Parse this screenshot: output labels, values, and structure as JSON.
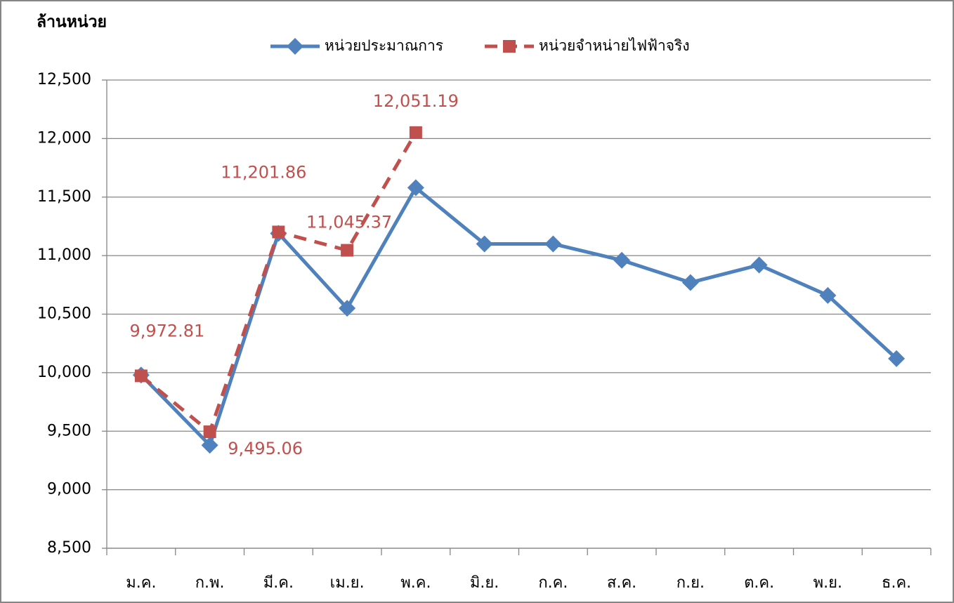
{
  "chart_data": {
    "type": "line",
    "y_axis_label": "ล้านหน่วย",
    "categories": [
      "ม.ค.",
      "ก.พ.",
      "มี.ค.",
      "เม.ย.",
      "พ.ค.",
      "มิ.ย.",
      "ก.ค.",
      "ส.ค.",
      "ก.ย.",
      "ต.ค.",
      "พ.ย.",
      "ธ.ค."
    ],
    "series": [
      {
        "name": "หน่วยประมาณการ",
        "color": "#4f81bd",
        "marker": "diamond",
        "dashed": false,
        "values": [
          9980,
          9380,
          11190,
          10550,
          11580,
          11100,
          11100,
          10960,
          10770,
          10920,
          10660,
          10120
        ]
      },
      {
        "name": "หน่วยจำหน่ายไฟฟ้าจริง",
        "color": "#c0504d",
        "marker": "square",
        "dashed": true,
        "values": [
          9972.81,
          9495.06,
          11201.86,
          11045.37,
          12051.19,
          null,
          null,
          null,
          null,
          null,
          null,
          null
        ],
        "value_labels": [
          "9,972.81",
          "9,495.06",
          "11,201.86",
          "11,045.37",
          "12,051.19",
          null,
          null,
          null,
          null,
          null,
          null,
          null
        ]
      }
    ],
    "ylim": [
      8500,
      12500
    ],
    "yticks": [
      {
        "value": 8500,
        "label": "8,500"
      },
      {
        "value": 9000,
        "label": "9,000"
      },
      {
        "value": 9500,
        "label": "9,500"
      },
      {
        "value": 10000,
        "label": "10,000"
      },
      {
        "value": 10500,
        "label": "10,500"
      },
      {
        "value": 11000,
        "label": "11,000"
      },
      {
        "value": 11500,
        "label": "11,500"
      },
      {
        "value": 12000,
        "label": "12,000"
      },
      {
        "value": 12500,
        "label": "12,500"
      }
    ],
    "grid": true,
    "legend": "top"
  }
}
